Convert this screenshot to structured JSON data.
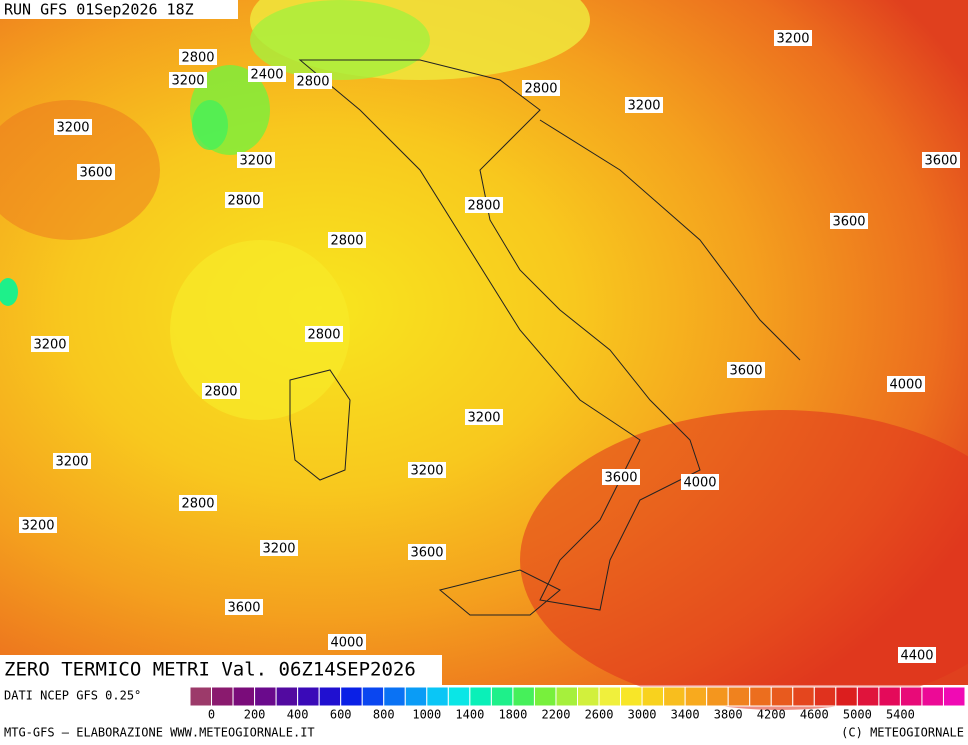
{
  "header": {
    "run": "RUN GFS 01Sep2026 18Z",
    "title": "ZERO TERMICO METRI Val. 06Z14SEP2026"
  },
  "contour_labels": [
    3200,
    2800,
    3200,
    2400,
    2800,
    2800,
    3200,
    3200,
    3200,
    3600,
    3600,
    2800,
    2800,
    3600,
    2800,
    2800,
    3200,
    3600,
    4000,
    2800,
    3200,
    3200,
    3200,
    3600,
    4000,
    2800,
    3200,
    3200,
    3600,
    3600,
    4000,
    4400
  ],
  "colorbar": {
    "source": "DATI NCEP GFS 0.25°",
    "ticks": [
      0,
      200,
      400,
      600,
      800,
      1000,
      1400,
      1800,
      2200,
      2600,
      3000,
      3400,
      3800,
      4200,
      4600,
      5000,
      5400
    ],
    "colors": [
      "#9c3a6a",
      "#8a1a6e",
      "#7a0c7a",
      "#6a0a8c",
      "#520aa0",
      "#3a0ab8",
      "#2010d0",
      "#0a20e6",
      "#0a46f0",
      "#0a72f4",
      "#0a9cf6",
      "#0ac6f6",
      "#0ae6e6",
      "#0af0b8",
      "#1ef08a",
      "#46f05a",
      "#78f03c",
      "#a6f03c",
      "#d2f03c",
      "#f0f03c",
      "#f8e628",
      "#f8d21e",
      "#f8be1e",
      "#f8aa1e",
      "#f4961e",
      "#f0821e",
      "#ec6e1e",
      "#e85a1e",
      "#e4461e",
      "#e0321e",
      "#dc1e1e",
      "#e0143c",
      "#e40a5a",
      "#e80a78",
      "#ec0a96",
      "#f00ab4"
    ]
  },
  "footer": {
    "left": "MTG-GFS — ELABORAZIONE WWW.METEOGIORNALE.IT",
    "right": "(C) METEOGIORNALE"
  }
}
